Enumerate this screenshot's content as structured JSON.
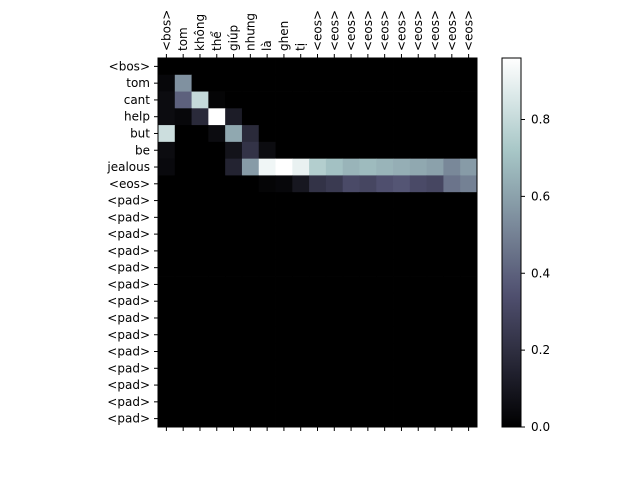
{
  "chart_data": {
    "type": "heatmap",
    "colormap": "bone",
    "x_tick_labels": [
      "<bos>",
      "tom",
      "không",
      "thể",
      "giúp",
      "nhưng",
      "là",
      "ghen",
      "tị",
      "<eos>",
      "<eos>",
      "<eos>",
      "<eos>",
      "<eos>",
      "<eos>",
      "<eos>",
      "<eos>",
      "<eos>",
      "<eos>"
    ],
    "y_tick_labels": [
      "<bos>",
      "tom",
      "cant",
      "help",
      "but",
      "be",
      "jealous",
      "<eos>",
      "<pad>",
      "<pad>",
      "<pad>",
      "<pad>",
      "<pad>",
      "<pad>",
      "<pad>",
      "<pad>",
      "<pad>",
      "<pad>",
      "<pad>",
      "<pad>",
      "<pad>",
      "<pad>"
    ],
    "colorbar": {
      "min": 0.0,
      "max": 0.96,
      "ticks": [
        "0.0",
        "0.2",
        "0.4",
        "0.6",
        "0.8"
      ],
      "tick_values": [
        0.0,
        0.2,
        0.4,
        0.6,
        0.8
      ]
    },
    "values": [
      [
        0.0,
        0.0,
        0.0,
        0.0,
        0.0,
        0.0,
        0.0,
        0.0,
        0.0,
        0.0,
        0.0,
        0.0,
        0.0,
        0.0,
        0.0,
        0.0,
        0.0,
        0.0,
        0.0
      ],
      [
        0.03,
        0.55,
        0.0,
        0.0,
        0.0,
        0.0,
        0.0,
        0.0,
        0.0,
        0.0,
        0.0,
        0.0,
        0.0,
        0.0,
        0.0,
        0.0,
        0.0,
        0.0,
        0.0
      ],
      [
        0.05,
        0.4,
        0.8,
        0.02,
        0.0,
        0.0,
        0.0,
        0.0,
        0.0,
        0.0,
        0.0,
        0.0,
        0.0,
        0.0,
        0.0,
        0.0,
        0.0,
        0.0,
        0.0
      ],
      [
        0.05,
        0.03,
        0.18,
        0.96,
        0.12,
        0.0,
        0.0,
        0.0,
        0.0,
        0.0,
        0.0,
        0.0,
        0.0,
        0.0,
        0.0,
        0.0,
        0.0,
        0.0,
        0.0
      ],
      [
        0.82,
        0.0,
        0.0,
        0.05,
        0.62,
        0.18,
        0.0,
        0.0,
        0.0,
        0.0,
        0.0,
        0.0,
        0.0,
        0.0,
        0.0,
        0.0,
        0.0,
        0.0,
        0.0
      ],
      [
        0.05,
        0.0,
        0.0,
        0.0,
        0.08,
        0.22,
        0.05,
        0.0,
        0.0,
        0.0,
        0.0,
        0.0,
        0.0,
        0.0,
        0.0,
        0.0,
        0.0,
        0.0,
        0.0
      ],
      [
        0.04,
        0.0,
        0.0,
        0.0,
        0.15,
        0.58,
        0.92,
        0.96,
        0.9,
        0.75,
        0.7,
        0.66,
        0.68,
        0.66,
        0.64,
        0.62,
        0.6,
        0.52,
        0.58
      ],
      [
        0.0,
        0.0,
        0.0,
        0.0,
        0.0,
        0.0,
        0.02,
        0.03,
        0.1,
        0.22,
        0.25,
        0.32,
        0.3,
        0.34,
        0.36,
        0.32,
        0.3,
        0.46,
        0.5
      ],
      [
        0.0,
        0.0,
        0.0,
        0.0,
        0.0,
        0.0,
        0.0,
        0.0,
        0.0,
        0.0,
        0.0,
        0.0,
        0.0,
        0.0,
        0.0,
        0.0,
        0.0,
        0.0,
        0.0
      ],
      [
        0.0,
        0.0,
        0.0,
        0.0,
        0.0,
        0.0,
        0.0,
        0.0,
        0.0,
        0.0,
        0.0,
        0.0,
        0.0,
        0.0,
        0.0,
        0.0,
        0.0,
        0.0,
        0.0
      ],
      [
        0.0,
        0.0,
        0.0,
        0.0,
        0.0,
        0.0,
        0.0,
        0.0,
        0.0,
        0.0,
        0.0,
        0.0,
        0.0,
        0.0,
        0.0,
        0.0,
        0.0,
        0.0,
        0.0
      ],
      [
        0.0,
        0.0,
        0.0,
        0.0,
        0.0,
        0.0,
        0.0,
        0.0,
        0.0,
        0.0,
        0.0,
        0.0,
        0.0,
        0.0,
        0.0,
        0.0,
        0.0,
        0.0,
        0.0
      ],
      [
        0.0,
        0.0,
        0.0,
        0.0,
        0.0,
        0.0,
        0.0,
        0.0,
        0.0,
        0.0,
        0.0,
        0.0,
        0.0,
        0.0,
        0.0,
        0.0,
        0.0,
        0.0,
        0.0
      ],
      [
        0.0,
        0.0,
        0.0,
        0.0,
        0.0,
        0.0,
        0.0,
        0.0,
        0.0,
        0.0,
        0.0,
        0.0,
        0.0,
        0.0,
        0.0,
        0.0,
        0.0,
        0.0,
        0.0
      ],
      [
        0.0,
        0.0,
        0.0,
        0.0,
        0.0,
        0.0,
        0.0,
        0.0,
        0.0,
        0.0,
        0.0,
        0.0,
        0.0,
        0.0,
        0.0,
        0.0,
        0.0,
        0.0,
        0.0
      ],
      [
        0.0,
        0.0,
        0.0,
        0.0,
        0.0,
        0.0,
        0.0,
        0.0,
        0.0,
        0.0,
        0.0,
        0.0,
        0.0,
        0.0,
        0.0,
        0.0,
        0.0,
        0.0,
        0.0
      ],
      [
        0.0,
        0.0,
        0.0,
        0.0,
        0.0,
        0.0,
        0.0,
        0.0,
        0.0,
        0.0,
        0.0,
        0.0,
        0.0,
        0.0,
        0.0,
        0.0,
        0.0,
        0.0,
        0.0
      ],
      [
        0.0,
        0.0,
        0.0,
        0.0,
        0.0,
        0.0,
        0.0,
        0.0,
        0.0,
        0.0,
        0.0,
        0.0,
        0.0,
        0.0,
        0.0,
        0.0,
        0.0,
        0.0,
        0.0
      ],
      [
        0.0,
        0.0,
        0.0,
        0.0,
        0.0,
        0.0,
        0.0,
        0.0,
        0.0,
        0.0,
        0.0,
        0.0,
        0.0,
        0.0,
        0.0,
        0.0,
        0.0,
        0.0,
        0.0
      ],
      [
        0.0,
        0.0,
        0.0,
        0.0,
        0.0,
        0.0,
        0.0,
        0.0,
        0.0,
        0.0,
        0.0,
        0.0,
        0.0,
        0.0,
        0.0,
        0.0,
        0.0,
        0.0,
        0.0
      ],
      [
        0.0,
        0.0,
        0.0,
        0.0,
        0.0,
        0.0,
        0.0,
        0.0,
        0.0,
        0.0,
        0.0,
        0.0,
        0.0,
        0.0,
        0.0,
        0.0,
        0.0,
        0.0,
        0.0
      ],
      [
        0.0,
        0.0,
        0.0,
        0.0,
        0.0,
        0.0,
        0.0,
        0.0,
        0.0,
        0.0,
        0.0,
        0.0,
        0.0,
        0.0,
        0.0,
        0.0,
        0.0,
        0.0,
        0.0
      ]
    ]
  }
}
